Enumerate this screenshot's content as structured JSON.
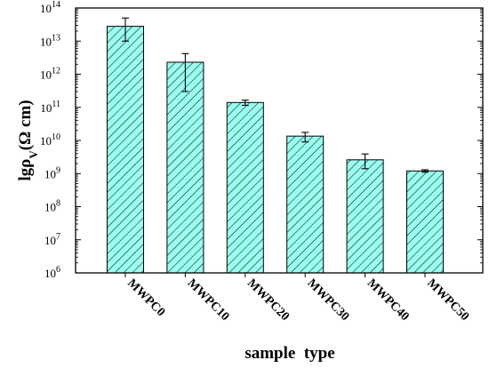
{
  "chart_data": {
    "type": "bar",
    "title": "",
    "xlabel": "sample  type",
    "ylabel": {
      "base": "lgρ",
      "subscript": "V",
      "unit": "(Ω cm)"
    },
    "y_scale": "log",
    "ylim": [
      1000000,
      100000000000000.0
    ],
    "y_ticks": [
      {
        "value": 1000000.0,
        "base": "10",
        "exp": "6"
      },
      {
        "value": 10000000.0,
        "base": "10",
        "exp": "7"
      },
      {
        "value": 100000000.0,
        "base": "10",
        "exp": "8"
      },
      {
        "value": 1000000000.0,
        "base": "10",
        "exp": "9"
      },
      {
        "value": 10000000000.0,
        "base": "10",
        "exp": "10"
      },
      {
        "value": 100000000000.0,
        "base": "10",
        "exp": "11"
      },
      {
        "value": 1000000000000.0,
        "base": "10",
        "exp": "12"
      },
      {
        "value": 10000000000000.0,
        "base": "10",
        "exp": "13"
      },
      {
        "value": 100000000000000.0,
        "base": "10",
        "exp": "14"
      }
    ],
    "categories": [
      "MWPC0",
      "MWPC10",
      "MWPC20",
      "MWPC30",
      "MWPC40",
      "MWPC50"
    ],
    "values": [
      28000000000000.0,
      2300000000000.0,
      140000000000.0,
      13500000000.0,
      2600000000.0,
      1200000000.0
    ],
    "error_low": [
      10000000000000.0,
      300000000000.0,
      115000000000.0,
      9000000000.0,
      1400000000.0,
      1100000000.0
    ],
    "error_high": [
      50000000000000.0,
      4200000000000.0,
      165000000000.0,
      17500000000.0,
      3900000000.0,
      1300000000.0
    ],
    "bar_fill": "#99ffee",
    "bar_hatch": "#000000",
    "grid": false,
    "legend": "none"
  }
}
